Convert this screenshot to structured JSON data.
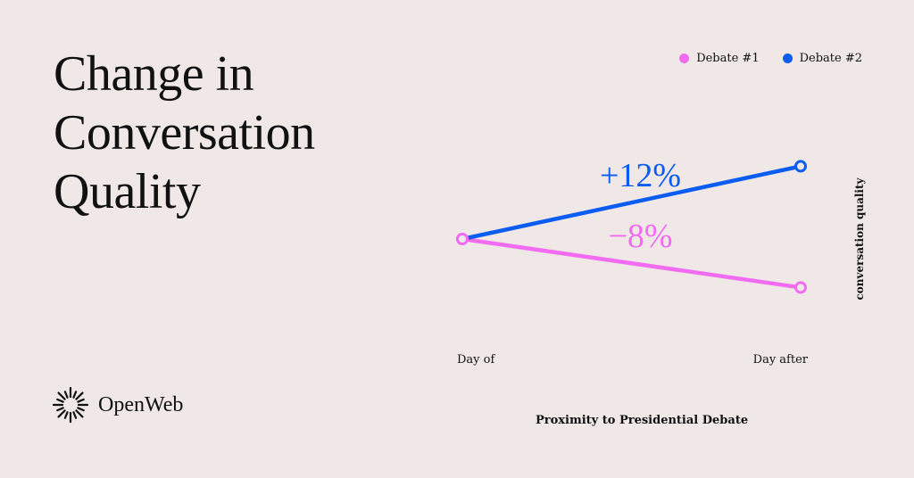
{
  "title": "Change in\nConversation\nQuality",
  "brand": {
    "name": "OpenWeb"
  },
  "colors": {
    "background": "#efe8e6",
    "debate1": "#f26cf2",
    "debate2": "#0b5cf0",
    "text": "#111111"
  },
  "chart_data": {
    "type": "line",
    "categories": [
      "Day of",
      "Day after"
    ],
    "series": [
      {
        "name": "Debate #1",
        "values": [
          100,
          92
        ],
        "label": "−8%",
        "color": "#f26cf2"
      },
      {
        "name": "Debate #2",
        "values": [
          100,
          112
        ],
        "label": "+12%",
        "color": "#0b5cf0"
      }
    ],
    "xlabel": "Proximity to Presidential Debate",
    "ylabel": "conversation quality",
    "legend": "top-right",
    "grid": false,
    "ylim": [
      85,
      115
    ]
  }
}
